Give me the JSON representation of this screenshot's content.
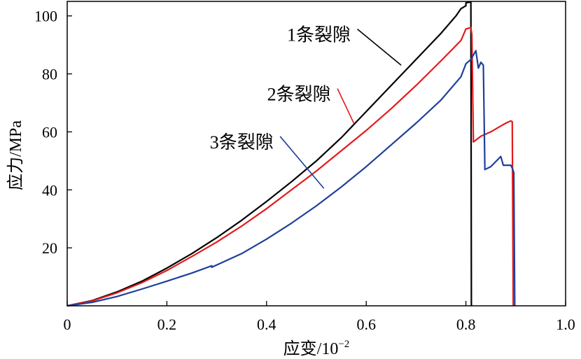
{
  "chart_data": {
    "type": "line",
    "xlabel": "应变/10",
    "xlabel_exponent": "−2",
    "ylabel": "应力/MPa",
    "xlim": [
      0,
      1.0
    ],
    "ylim": [
      0,
      105
    ],
    "xticks": [
      0,
      0.2,
      0.4,
      0.6,
      0.8,
      1.0
    ],
    "xtick_labels": [
      "0",
      "0.2",
      "0.4",
      "0.6",
      "0.8",
      "1.0"
    ],
    "yticks": [
      20,
      40,
      60,
      80,
      100
    ],
    "ytick_labels": [
      "20",
      "40",
      "60",
      "80",
      "100"
    ],
    "grid": false,
    "legend": "none",
    "series": [
      {
        "name": "1条裂隙",
        "color": "#000000",
        "points": [
          [
            0,
            0
          ],
          [
            0.05,
            1.8
          ],
          [
            0.1,
            4.8
          ],
          [
            0.15,
            8.5
          ],
          [
            0.2,
            13
          ],
          [
            0.25,
            18
          ],
          [
            0.3,
            23.5
          ],
          [
            0.35,
            29.5
          ],
          [
            0.4,
            36
          ],
          [
            0.45,
            42.8
          ],
          [
            0.5,
            50
          ],
          [
            0.55,
            58
          ],
          [
            0.6,
            67
          ],
          [
            0.65,
            76
          ],
          [
            0.7,
            85
          ],
          [
            0.75,
            94
          ],
          [
            0.78,
            100
          ],
          [
            0.79,
            102.5
          ],
          [
            0.8,
            103.5
          ],
          [
            0.8,
            104.5
          ],
          [
            0.81,
            104.8
          ],
          [
            0.811,
            0
          ]
        ]
      },
      {
        "name": "2条裂隙",
        "color": "#e31a1c",
        "points": [
          [
            0,
            0
          ],
          [
            0.05,
            1.7
          ],
          [
            0.1,
            4.5
          ],
          [
            0.15,
            8
          ],
          [
            0.2,
            12.2
          ],
          [
            0.25,
            17
          ],
          [
            0.3,
            22
          ],
          [
            0.35,
            27.5
          ],
          [
            0.4,
            33.5
          ],
          [
            0.45,
            40
          ],
          [
            0.5,
            46.5
          ],
          [
            0.55,
            53.5
          ],
          [
            0.6,
            60.5
          ],
          [
            0.65,
            68
          ],
          [
            0.7,
            76
          ],
          [
            0.75,
            84.5
          ],
          [
            0.79,
            91.5
          ],
          [
            0.8,
            95.5
          ],
          [
            0.81,
            96
          ],
          [
            0.812,
            93.5
          ],
          [
            0.815,
            56.5
          ],
          [
            0.83,
            58.5
          ],
          [
            0.85,
            60
          ],
          [
            0.87,
            62
          ],
          [
            0.88,
            63
          ],
          [
            0.89,
            63.8
          ],
          [
            0.893,
            63.5
          ],
          [
            0.895,
            0
          ]
        ]
      },
      {
        "name": "3条裂隙",
        "color": "#1f3f9a",
        "points": [
          [
            0,
            0
          ],
          [
            0.05,
            1.2
          ],
          [
            0.1,
            3.2
          ],
          [
            0.15,
            5.8
          ],
          [
            0.2,
            8.5
          ],
          [
            0.25,
            11.3
          ],
          [
            0.29,
            13.8
          ],
          [
            0.29,
            13.3
          ],
          [
            0.35,
            18
          ],
          [
            0.4,
            23
          ],
          [
            0.45,
            28.5
          ],
          [
            0.5,
            34.5
          ],
          [
            0.55,
            41
          ],
          [
            0.6,
            48
          ],
          [
            0.65,
            55.5
          ],
          [
            0.7,
            63
          ],
          [
            0.75,
            71
          ],
          [
            0.79,
            79
          ],
          [
            0.8,
            83.5
          ],
          [
            0.81,
            85
          ],
          [
            0.82,
            88
          ],
          [
            0.825,
            82
          ],
          [
            0.83,
            84
          ],
          [
            0.835,
            83
          ],
          [
            0.838,
            47
          ],
          [
            0.85,
            48
          ],
          [
            0.87,
            51.5
          ],
          [
            0.875,
            48.5
          ],
          [
            0.89,
            48.5
          ],
          [
            0.893,
            47.5
          ],
          [
            0.896,
            46
          ],
          [
            0.898,
            0
          ]
        ]
      }
    ],
    "annotations": [
      {
        "text": "1条裂隙",
        "series": 0,
        "label_x": 0.505,
        "label_y": 93.5,
        "arrow_to": [
          0.67,
          83
        ]
      },
      {
        "text": "2条裂隙",
        "series": 1,
        "label_x": 0.465,
        "label_y": 73,
        "arrow_to": [
          0.575,
          63
        ]
      },
      {
        "text": "3条裂隙",
        "series": 2,
        "label_x": 0.35,
        "label_y": 56.5,
        "arrow_to": [
          0.515,
          40.5
        ]
      }
    ]
  }
}
